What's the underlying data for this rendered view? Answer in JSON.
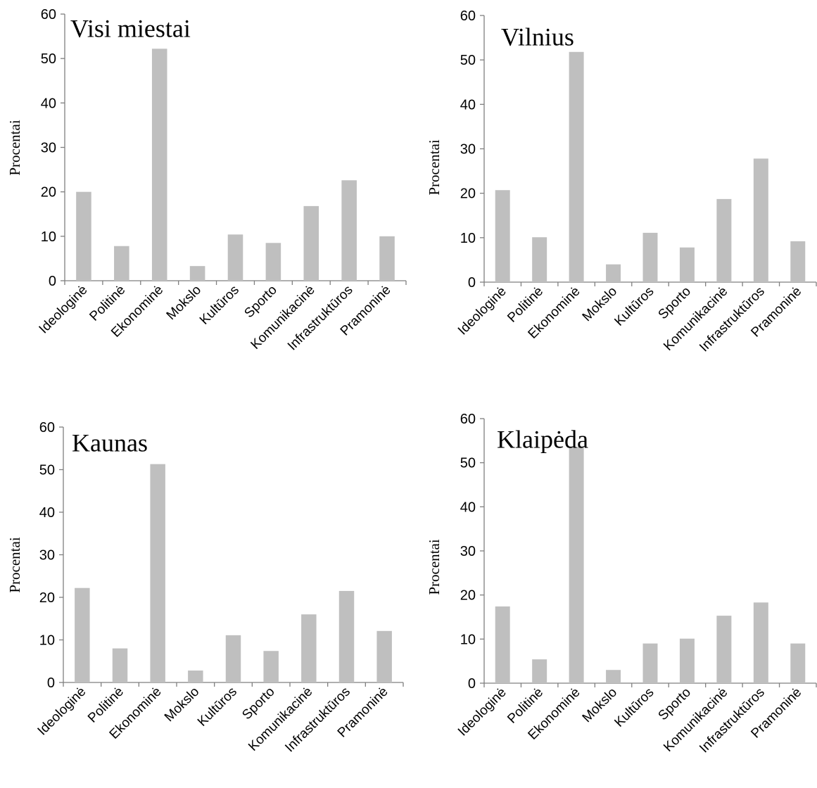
{
  "chart_data": [
    {
      "type": "bar",
      "title": "Visi miestai",
      "ylabel": "Procentai",
      "xlabel": "",
      "ylim": [
        0,
        60
      ],
      "yticks": [
        0,
        10,
        20,
        30,
        40,
        50,
        60
      ],
      "categories": [
        "Ideologinė",
        "Politinė",
        "Ekonominė",
        "Mokslo",
        "Kultūros",
        "Sporto",
        "Komunikacinė",
        "Infrastruktūros",
        "Pramoninė"
      ],
      "values": [
        20.0,
        7.8,
        52.2,
        3.3,
        10.4,
        8.5,
        16.8,
        22.6,
        10.0
      ],
      "bar_color": "#bfbfbf",
      "grid": false
    },
    {
      "type": "bar",
      "title": "Vilnius",
      "ylabel": "Procentai",
      "xlabel": "",
      "ylim": [
        0,
        60
      ],
      "yticks": [
        0,
        10,
        20,
        30,
        40,
        50,
        60
      ],
      "categories": [
        "Ideologinė",
        "Politinė",
        "Ekonominė",
        "Mokslo",
        "Kultūros",
        "Sporto",
        "Komunikacinė",
        "Infrastruktūros",
        "Pramoninė"
      ],
      "values": [
        20.7,
        10.1,
        51.8,
        4.0,
        11.1,
        7.8,
        18.7,
        27.8,
        9.2
      ],
      "bar_color": "#bfbfbf",
      "grid": false
    },
    {
      "type": "bar",
      "title": "Kaunas",
      "ylabel": "Procentai",
      "xlabel": "",
      "ylim": [
        0,
        60
      ],
      "yticks": [
        0,
        10,
        20,
        30,
        40,
        50,
        60
      ],
      "categories": [
        "Ideologinė",
        "Politinė",
        "Ekonominė",
        "Mokslo",
        "Kultūros",
        "Sporto",
        "Komunikacinė",
        "Infrastruktūros",
        "Pramoninė"
      ],
      "values": [
        22.2,
        8.0,
        51.3,
        2.8,
        11.1,
        7.4,
        16.0,
        21.5,
        12.1
      ],
      "bar_color": "#bfbfbf",
      "grid": false
    },
    {
      "type": "bar",
      "title": "Klaipėda",
      "ylabel": "Procentai",
      "xlabel": "",
      "ylim": [
        0,
        60
      ],
      "yticks": [
        0,
        10,
        20,
        30,
        40,
        50,
        60
      ],
      "categories": [
        "Ideologinė",
        "Politinė",
        "Ekonominė",
        "Mokslo",
        "Kultūros",
        "Sporto",
        "Komunikacinė",
        "Infrastruktūros",
        "Pramoninė"
      ],
      "values": [
        17.4,
        5.4,
        53.6,
        3.0,
        9.0,
        10.1,
        15.3,
        18.3,
        9.0
      ],
      "bar_color": "#bfbfbf",
      "grid": false
    }
  ]
}
